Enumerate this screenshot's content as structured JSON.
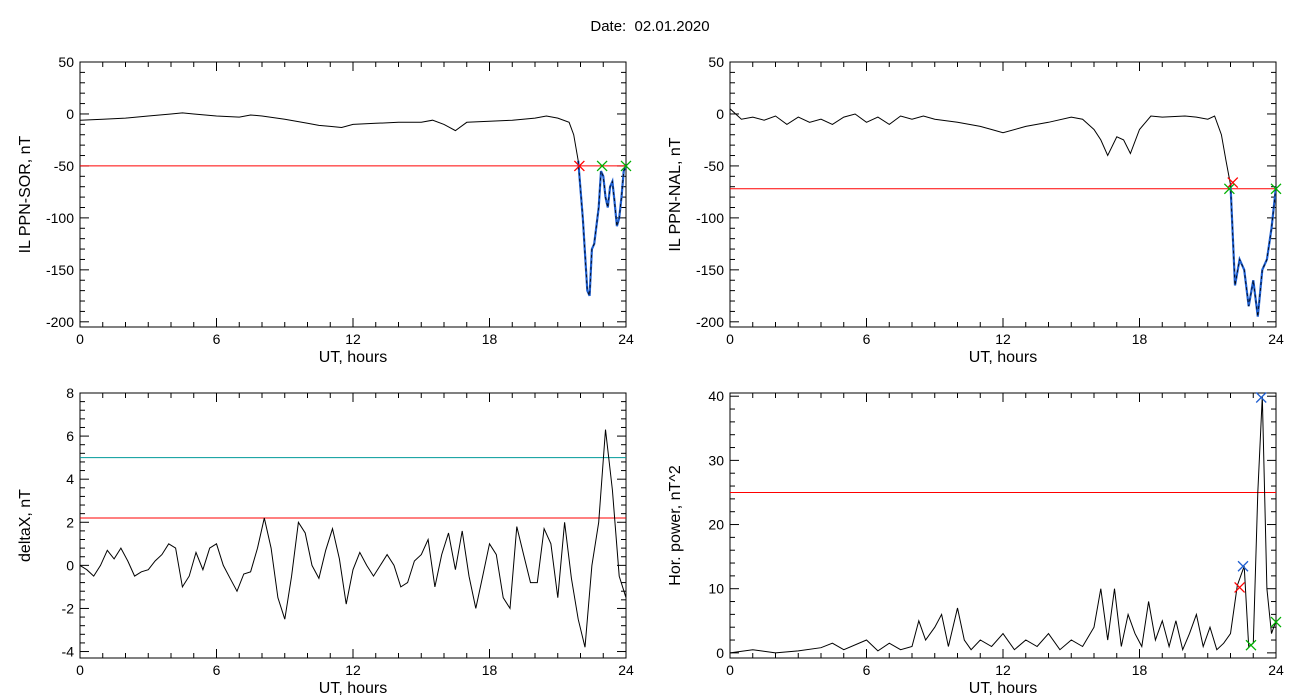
{
  "header": {
    "date_text": "Date:  02.01.2020"
  },
  "colors": {
    "trace": "#000000",
    "threshold_red": "#ff0000",
    "threshold_teal": "#009999",
    "active_blue": "#1f5fd0",
    "marker_red": "#ff0000",
    "marker_green": "#00b000",
    "marker_blue": "#1f5fd0"
  },
  "chart_data": [
    {
      "type": "line",
      "ylabel": "IL PPN-SOR, nT",
      "xlabel": "UT, hours",
      "xlim": [
        0,
        24
      ],
      "ylim": [
        -205,
        50
      ],
      "xticks": [
        0,
        6,
        12,
        18,
        24
      ],
      "yticks": [
        50,
        0,
        -50,
        -100,
        -150,
        -200
      ],
      "grid": false,
      "series": [
        {
          "role": "trace",
          "x": [
            0,
            1,
            2,
            3,
            4,
            4.5,
            5,
            6,
            7,
            7.5,
            8,
            9,
            10,
            10.5,
            11,
            11.5,
            12,
            13,
            14,
            15,
            15.5,
            16,
            16.5,
            17,
            18,
            19,
            20,
            20.5,
            21,
            21.5,
            21.7,
            21.9
          ],
          "y": [
            -6,
            -5,
            -4,
            -2,
            0,
            1,
            0,
            -2,
            -3,
            -1,
            -2,
            -5,
            -9,
            -11,
            -12,
            -13,
            -10,
            -9,
            -8,
            -8,
            -6,
            -10,
            -16,
            -8,
            -7,
            -6,
            -4,
            -2,
            -4,
            -8,
            -20,
            -45
          ]
        },
        {
          "role": "active",
          "x": [
            21.9,
            22.1,
            22.3,
            22.4,
            22.5,
            22.6,
            22.8,
            22.9,
            23.0,
            23.1,
            23.2,
            23.3,
            23.4,
            23.5,
            23.6,
            23.7,
            23.8,
            23.9,
            24
          ],
          "y": [
            -45,
            -100,
            -170,
            -175,
            -130,
            -125,
            -90,
            -55,
            -60,
            -80,
            -90,
            -70,
            -65,
            -85,
            -108,
            -100,
            -80,
            -55,
            -50
          ]
        }
      ],
      "thresholds": [
        {
          "color": "red",
          "y": -50
        }
      ],
      "markers": [
        {
          "color": "red",
          "x": 21.95,
          "y": -50
        },
        {
          "color": "green",
          "x": 22.95,
          "y": -50
        },
        {
          "color": "green",
          "x": 24,
          "y": -50
        }
      ]
    },
    {
      "type": "line",
      "ylabel": "IL PPN-NAL, nT",
      "xlabel": "UT, hours",
      "xlim": [
        0,
        24
      ],
      "ylim": [
        -205,
        50
      ],
      "xticks": [
        0,
        6,
        12,
        18,
        24
      ],
      "yticks": [
        50,
        0,
        -50,
        -100,
        -150,
        -200
      ],
      "grid": false,
      "series": [
        {
          "role": "trace",
          "x": [
            0,
            0.5,
            1,
            1.5,
            2,
            2.5,
            3,
            3.5,
            4,
            4.5,
            5,
            5.5,
            6,
            6.5,
            7,
            7.5,
            8,
            8.5,
            9,
            10,
            11,
            11.5,
            12,
            13,
            14,
            15,
            15.5,
            16,
            16.3,
            16.6,
            17,
            17.3,
            17.6,
            18,
            18.5,
            19,
            20,
            20.5,
            21,
            21.3,
            21.6,
            21.8,
            22
          ],
          "y": [
            5,
            -5,
            -3,
            -6,
            -2,
            -10,
            -3,
            -8,
            -5,
            -10,
            -3,
            0,
            -8,
            -3,
            -10,
            -2,
            -5,
            -2,
            -5,
            -8,
            -12,
            -15,
            -18,
            -12,
            -8,
            -3,
            -5,
            -15,
            -25,
            -40,
            -22,
            -25,
            -38,
            -15,
            -2,
            -3,
            -2,
            -3,
            -5,
            -2,
            -20,
            -45,
            -68
          ]
        },
        {
          "role": "active",
          "x": [
            22,
            22.2,
            22.4,
            22.6,
            22.8,
            23,
            23.2,
            23.4,
            23.6,
            23.8,
            24
          ],
          "y": [
            -68,
            -165,
            -140,
            -150,
            -185,
            -160,
            -195,
            -150,
            -140,
            -110,
            -70
          ]
        }
      ],
      "thresholds": [
        {
          "color": "red",
          "y": -72
        }
      ],
      "markers": [
        {
          "color": "red",
          "x": 22.1,
          "y": -66
        },
        {
          "color": "green",
          "x": 21.95,
          "y": -72
        },
        {
          "color": "green",
          "x": 24,
          "y": -72
        }
      ]
    },
    {
      "type": "line",
      "ylabel": "deltaX, nT",
      "xlabel": "UT, hours",
      "xlim": [
        0,
        24
      ],
      "ylim": [
        -4.3,
        8
      ],
      "xticks": [
        0,
        6,
        12,
        18,
        24
      ],
      "yticks": [
        8,
        6,
        4,
        2,
        0,
        -2,
        -4
      ],
      "grid": false,
      "series": [
        {
          "role": "trace",
          "x": [
            0,
            0.3,
            0.6,
            0.9,
            1.2,
            1.5,
            1.8,
            2.1,
            2.4,
            2.7,
            3,
            3.3,
            3.6,
            3.9,
            4.2,
            4.5,
            4.8,
            5.1,
            5.4,
            5.7,
            6,
            6.3,
            6.6,
            6.9,
            7.2,
            7.5,
            7.8,
            8.1,
            8.4,
            8.7,
            9,
            9.3,
            9.6,
            9.9,
            10.2,
            10.5,
            10.8,
            11.1,
            11.4,
            11.7,
            12,
            12.3,
            12.6,
            12.9,
            13.2,
            13.5,
            13.8,
            14.1,
            14.4,
            14.7,
            15,
            15.3,
            15.6,
            15.9,
            16.2,
            16.5,
            16.8,
            17.1,
            17.4,
            17.7,
            18,
            18.3,
            18.6,
            18.9,
            19.2,
            19.5,
            19.8,
            20.1,
            20.4,
            20.7,
            21,
            21.3,
            21.6,
            21.9,
            22.2,
            22.5,
            22.8,
            23.1,
            23.4,
            23.7,
            24
          ],
          "y": [
            0,
            -0.2,
            -0.5,
            0,
            0.7,
            0.3,
            0.8,
            0.2,
            -0.5,
            -0.3,
            -0.2,
            0.2,
            0.5,
            1,
            0.8,
            -1,
            -0.5,
            0.6,
            -0.2,
            0.8,
            1,
            0,
            -0.6,
            -1.2,
            -0.4,
            -0.3,
            0.8,
            2.2,
            0.8,
            -1.5,
            -2.5,
            -0.5,
            2,
            1.5,
            0,
            -0.6,
            0.7,
            1.7,
            0.3,
            -1.8,
            -0.2,
            0.6,
            0,
            -0.5,
            0,
            0.5,
            0,
            -1,
            -0.8,
            0.2,
            0.5,
            1.2,
            -1,
            0.5,
            1.5,
            -0.2,
            1.6,
            -0.5,
            -2,
            -0.5,
            1,
            0.5,
            -1.5,
            -2,
            1.8,
            0.5,
            -0.8,
            -0.8,
            1.7,
            1,
            -1.5,
            2,
            -0.6,
            -2.5,
            -3.8,
            0,
            2,
            6.3,
            3.5,
            -0.5,
            -1.5
          ]
        }
      ],
      "thresholds": [
        {
          "color": "teal",
          "y": 5
        },
        {
          "color": "red",
          "y": 2.2
        }
      ],
      "markers": []
    },
    {
      "type": "line",
      "ylabel": "Hor. power, nT^2",
      "xlabel": "UT, hours",
      "xlim": [
        0,
        24
      ],
      "ylim": [
        -0.8,
        40.5
      ],
      "xticks": [
        0,
        6,
        12,
        18,
        24
      ],
      "yticks": [
        40,
        30,
        20,
        10,
        0
      ],
      "grid": false,
      "series": [
        {
          "role": "trace",
          "x": [
            0,
            1,
            2,
            3,
            4,
            4.5,
            5,
            6,
            6.5,
            7,
            7.5,
            8,
            8.3,
            8.6,
            9,
            9.3,
            9.6,
            10,
            10.3,
            10.6,
            11,
            11.5,
            12,
            12.5,
            13,
            13.5,
            14,
            14.5,
            15,
            15.5,
            16,
            16.3,
            16.6,
            16.9,
            17.2,
            17.5,
            17.8,
            18.1,
            18.4,
            18.7,
            19,
            19.3,
            19.6,
            19.9,
            20.2,
            20.5,
            20.8,
            21.1,
            21.4,
            21.7,
            22,
            22.3,
            22.6,
            22.8,
            23,
            23.2,
            23.4,
            23.6,
            23.8,
            24
          ],
          "y": [
            0,
            0.5,
            0,
            0.3,
            0.8,
            1.5,
            0.5,
            2,
            0.3,
            1.5,
            0.5,
            1,
            5,
            2,
            4,
            6,
            1,
            7,
            2,
            0.5,
            2,
            1,
            3,
            0.5,
            2,
            1,
            3,
            0.5,
            2,
            1,
            4,
            10,
            2,
            10,
            1,
            6,
            3,
            1,
            8,
            2,
            5,
            1,
            5,
            0.5,
            3,
            6,
            1,
            4,
            0.5,
            1.5,
            3,
            10.5,
            13.5,
            1,
            1.5,
            25,
            40,
            10,
            3,
            5
          ]
        }
      ],
      "thresholds": [
        {
          "color": "red",
          "y": 25
        }
      ],
      "markers": [
        {
          "color": "blue",
          "x": 22.55,
          "y": 13.5
        },
        {
          "color": "red",
          "x": 22.4,
          "y": 10.2
        },
        {
          "color": "green",
          "x": 22.9,
          "y": 1.2
        },
        {
          "color": "green",
          "x": 24,
          "y": 4.8
        },
        {
          "color": "blue",
          "x": 23.35,
          "y": 39.8
        }
      ]
    }
  ]
}
